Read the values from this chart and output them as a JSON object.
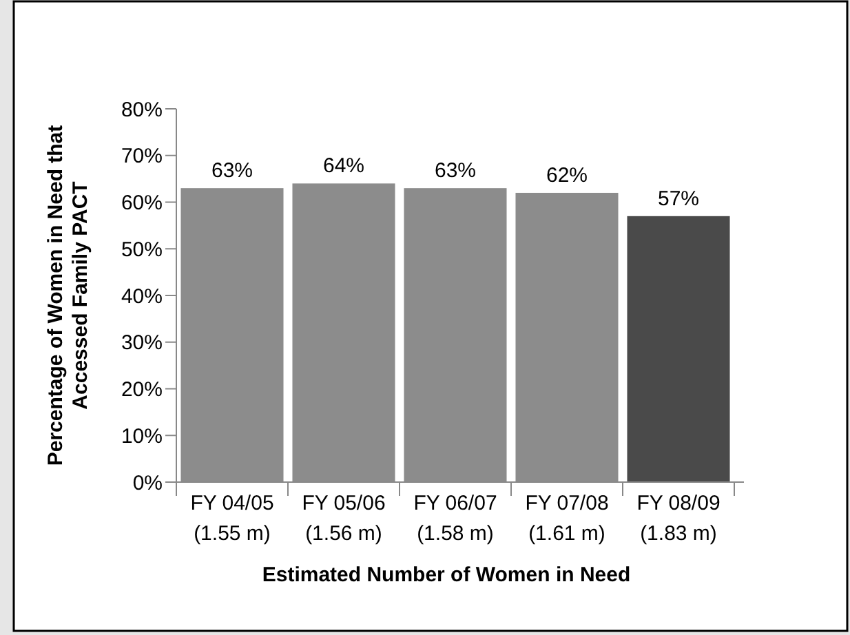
{
  "chart_data": {
    "type": "bar",
    "xlabel": "Estimated Number of Women in Need",
    "ylabel": "Percentage of Women in Need that\nAccessed Family PACT",
    "categories": [
      "FY 04/05\n(1.55 m)",
      "FY 05/06\n(1.56 m)",
      "FY 06/07\n(1.58 m)",
      "FY 07/08\n(1.61 m)",
      "FY 08/09\n(1.83 m)"
    ],
    "values": [
      63,
      64,
      63,
      62,
      57
    ],
    "colors": [
      "#8c8c8c",
      "#8c8c8c",
      "#8c8c8c",
      "#8c8c8c",
      "#4a4a4a"
    ],
    "value_labels": [
      "63%",
      "64%",
      "63%",
      "62%",
      "57%"
    ],
    "ylim": [
      0,
      80
    ],
    "yticks": [
      {
        "value": 0,
        "label": "0%"
      },
      {
        "value": 10,
        "label": "10%"
      },
      {
        "value": 20,
        "label": "20%"
      },
      {
        "value": 30,
        "label": "30%"
      },
      {
        "value": 40,
        "label": "40%"
      },
      {
        "value": 50,
        "label": "50%"
      },
      {
        "value": 60,
        "label": "60%"
      },
      {
        "value": 70,
        "label": "70%"
      },
      {
        "value": 80,
        "label": "80%"
      }
    ],
    "grid": false
  }
}
